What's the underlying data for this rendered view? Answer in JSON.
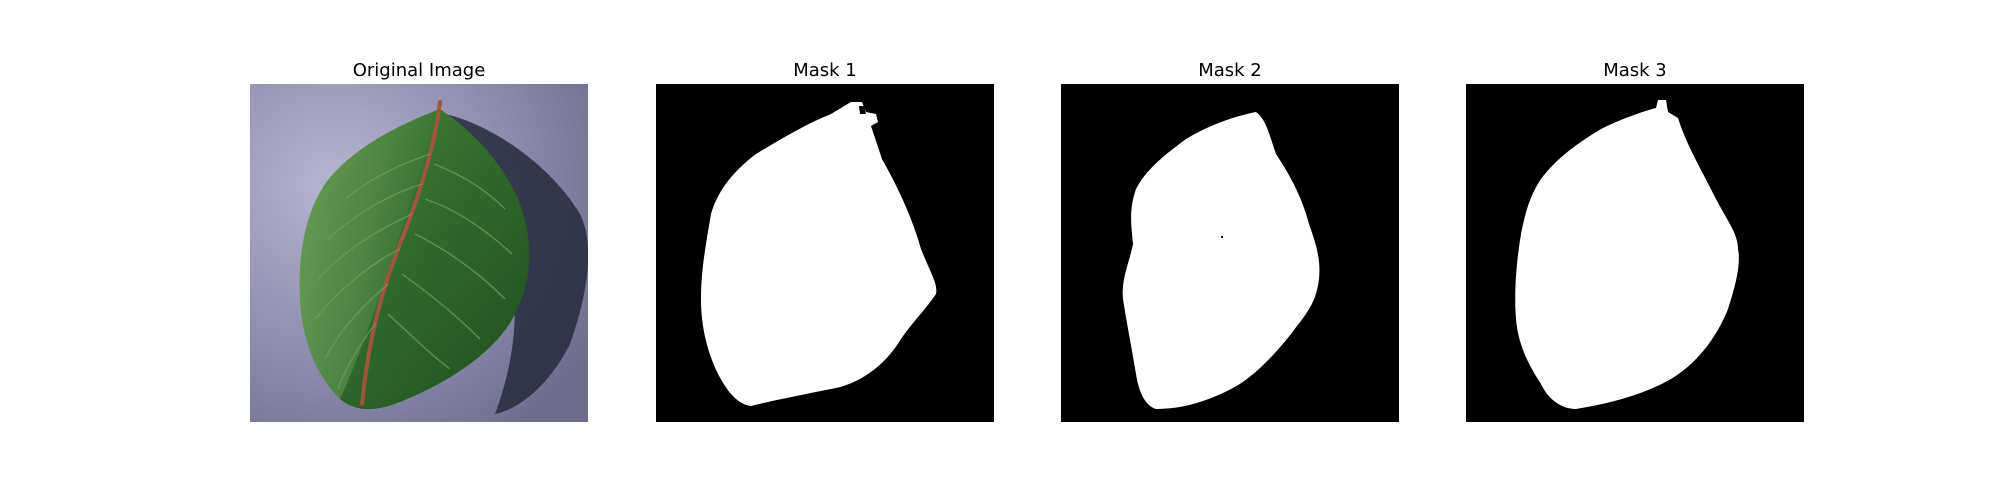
{
  "figure": {
    "panels": [
      {
        "title": "Original Image",
        "kind": "photo",
        "subject": "leaf-photo"
      },
      {
        "title": "Mask 1",
        "kind": "mask"
      },
      {
        "title": "Mask 2",
        "kind": "mask"
      },
      {
        "title": "Mask 3",
        "kind": "mask"
      }
    ]
  },
  "colors": {
    "mask_background": "#000000",
    "mask_foreground": "#ffffff",
    "leaf_green": "#2e6a2a",
    "leaf_light": "#4f8c3e",
    "background_lavender": "#8d8cab",
    "midrib": "#a0563a",
    "shadow": "#262a3a"
  }
}
